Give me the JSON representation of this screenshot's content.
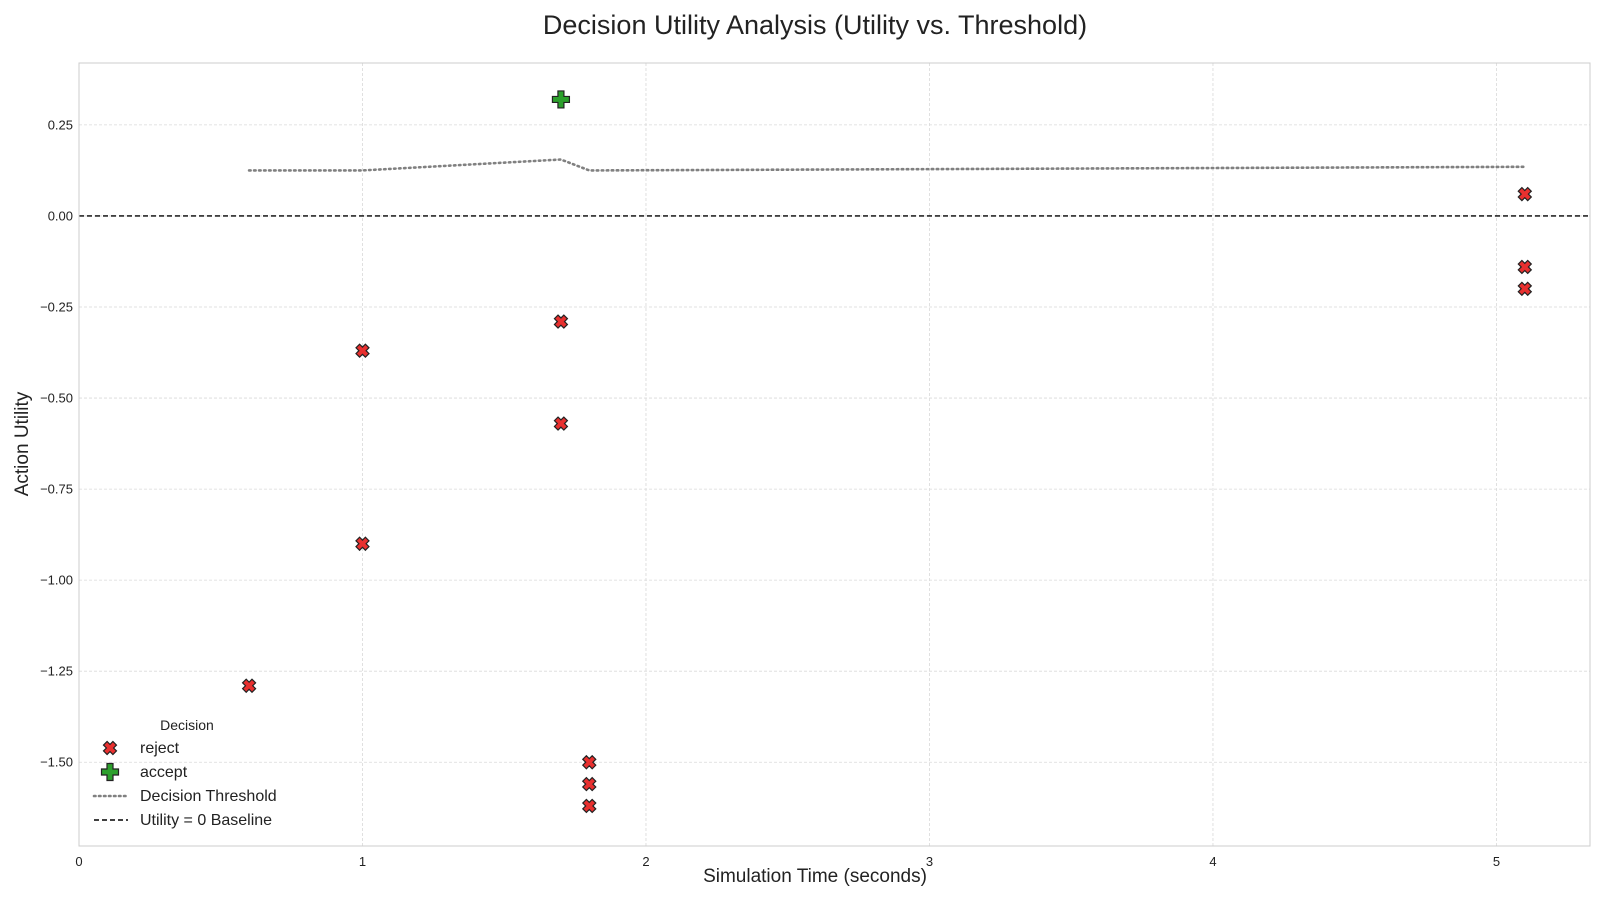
{
  "chart_data": {
    "type": "scatter",
    "title": "Decision Utility Analysis (Utility vs. Threshold)",
    "xlabel": "Simulation Time (seconds)",
    "ylabel": "Action Utility",
    "xlim": [
      0,
      5.33
    ],
    "ylim": [
      -1.73,
      0.42
    ],
    "x_ticks": [
      0,
      1,
      2,
      3,
      4,
      5
    ],
    "x_tick_labels": [
      "0",
      "1",
      "2",
      "3",
      "4",
      "5"
    ],
    "y_ticks": [
      0.25,
      0.0,
      -0.25,
      -0.5,
      -0.75,
      -1.0,
      -1.25,
      -1.5
    ],
    "y_tick_labels": [
      "0.25",
      "0.00",
      "−0.25",
      "−0.50",
      "−0.75",
      "−1.00",
      "−1.25",
      "−1.50"
    ],
    "grid": true,
    "legend": {
      "title": "Decision",
      "placement": "lower-left",
      "entries": [
        "reject",
        "accept",
        "Decision Threshold",
        "Utility = 0 Baseline"
      ]
    },
    "colors": {
      "reject": "#e8302f",
      "accept": "#2ca02c",
      "threshold": "#808080",
      "baseline": "#000000",
      "grid": "#d9d9d9"
    },
    "series": [
      {
        "name": "reject",
        "marker": "x",
        "x": [
          0.6,
          1.0,
          1.0,
          1.7,
          1.7,
          1.8,
          1.8,
          1.8,
          5.1,
          5.1,
          5.1
        ],
        "y": [
          -1.29,
          -0.37,
          -0.9,
          -0.29,
          -0.57,
          -1.5,
          -1.56,
          -1.62,
          0.06,
          -0.14,
          -0.2
        ]
      },
      {
        "name": "accept",
        "marker": "plus",
        "x": [
          1.7
        ],
        "y": [
          0.32
        ]
      },
      {
        "name": "Decision Threshold",
        "kind": "line",
        "style": "dotted",
        "x": [
          0.6,
          1.0,
          1.7,
          1.8,
          5.1
        ],
        "y": [
          0.125,
          0.125,
          0.155,
          0.125,
          0.135
        ]
      },
      {
        "name": "Utility = 0 Baseline",
        "kind": "hline",
        "style": "dashed",
        "y": 0
      }
    ]
  }
}
